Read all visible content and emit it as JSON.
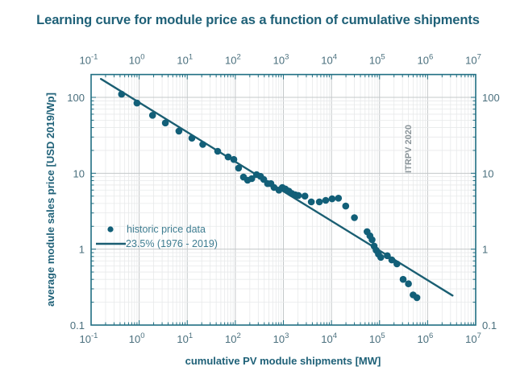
{
  "chart_data": {
    "type": "scatter",
    "title": "Learning curve for module price as a function of cumulative shipments",
    "xlabel": "cumulative PV module shipments [MW]",
    "ylabel": "average module sales price [USD 2019/Wp]",
    "xscale": "log",
    "yscale": "log",
    "xlim": [
      0.1,
      10000000
    ],
    "ylim": [
      0.1,
      200
    ],
    "x_ticks": [
      {
        "value": 0.1,
        "base": "10",
        "exp": "-1"
      },
      {
        "value": 1,
        "base": "10",
        "exp": "0"
      },
      {
        "value": 10,
        "base": "10",
        "exp": "1"
      },
      {
        "value": 100,
        "base": "10",
        "exp": "2"
      },
      {
        "value": 1000,
        "base": "10",
        "exp": "3"
      },
      {
        "value": 10000,
        "base": "10",
        "exp": "4"
      },
      {
        "value": 100000,
        "base": "10",
        "exp": "5"
      },
      {
        "value": 1000000,
        "base": "10",
        "exp": "6"
      },
      {
        "value": 10000000,
        "base": "10",
        "exp": "7"
      }
    ],
    "y_ticks": [
      {
        "value": 0.1,
        "label": "0.1"
      },
      {
        "value": 1,
        "label": "1"
      },
      {
        "value": 10,
        "label": "10"
      },
      {
        "value": 100,
        "label": "100"
      }
    ],
    "grid": true,
    "legend_position": "lower-left",
    "annotation": "ITRPV 2020",
    "series": [
      {
        "name": "historic price data",
        "kind": "scatter",
        "color": "#125f78",
        "points": [
          [
            0.43,
            110
          ],
          [
            0.9,
            84
          ],
          [
            1.9,
            58
          ],
          [
            3.5,
            46
          ],
          [
            6.7,
            36
          ],
          [
            12.5,
            29
          ],
          [
            21,
            24
          ],
          [
            43,
            19.5
          ],
          [
            71,
            16.4
          ],
          [
            93,
            15.2
          ],
          [
            117,
            11.7
          ],
          [
            148,
            8.9
          ],
          [
            180,
            8.1
          ],
          [
            220,
            8.5
          ],
          [
            276,
            9.6
          ],
          [
            334,
            9.1
          ],
          [
            390,
            8.3
          ],
          [
            470,
            7.3
          ],
          [
            550,
            7.3
          ],
          [
            640,
            6.5
          ],
          [
            810,
            6.0
          ],
          [
            950,
            6.5
          ],
          [
            1100,
            6.2
          ],
          [
            1300,
            5.8
          ],
          [
            1500,
            5.4
          ],
          [
            1760,
            5.2
          ],
          [
            2050,
            5.1
          ],
          [
            2800,
            5.0
          ],
          [
            3800,
            4.2
          ],
          [
            5600,
            4.2
          ],
          [
            7600,
            4.4
          ],
          [
            10300,
            4.6
          ],
          [
            14000,
            4.7
          ],
          [
            19800,
            3.7
          ],
          [
            30000,
            2.6
          ],
          [
            55000,
            1.7
          ],
          [
            63000,
            1.5
          ],
          [
            70000,
            1.33
          ],
          [
            77000,
            1.1
          ],
          [
            85000,
            0.97
          ],
          [
            95000,
            0.86
          ],
          [
            106000,
            0.78
          ],
          [
            145000,
            0.82
          ],
          [
            180000,
            0.72
          ],
          [
            230000,
            0.64
          ],
          [
            310000,
            0.4
          ],
          [
            400000,
            0.35
          ],
          [
            500000,
            0.25
          ],
          [
            600000,
            0.23
          ]
        ]
      },
      {
        "name": "23.5% (1976 - 2019)",
        "kind": "line",
        "color": "#1a5e72",
        "learning_rate_percent": 23.5,
        "points": [
          [
            0.16,
            175
          ],
          [
            3300000,
            0.245
          ]
        ]
      }
    ]
  }
}
